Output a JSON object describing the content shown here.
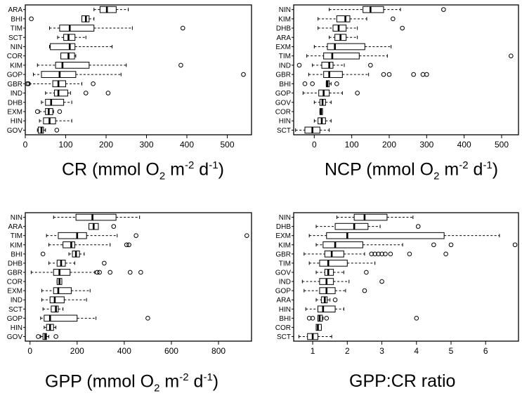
{
  "chart_data": [
    {
      "type": "boxplot",
      "panel": "top-left",
      "xlabel": {
        "main": "CR (mmol O",
        "sub": "2",
        "mid1": " m",
        "sup1": "-2",
        "mid2": " d",
        "sup2": "-1",
        "end": ")"
      },
      "xlim": [
        0,
        560
      ],
      "xticks": [
        0,
        100,
        200,
        300,
        400,
        500
      ],
      "categories": [
        "ARA",
        "BHI",
        "TIM",
        "SCT",
        "NIN",
        "COR",
        "KIM",
        "GOP",
        "GBR",
        "IND",
        "DHB",
        "EXM",
        "HIN",
        "GOV"
      ],
      "boxes": [
        {
          "cat": "ARA",
          "whisker_low": 170,
          "q1": 185,
          "median": 202,
          "q3": 225,
          "whisker_high": 255,
          "outliers": []
        },
        {
          "cat": "BHI",
          "whisker_low": 140,
          "q1": 140,
          "median": 150,
          "q3": 158,
          "whisker_high": 170,
          "outliers": [
            15
          ]
        },
        {
          "cat": "TIM",
          "whisker_low": 60,
          "q1": 85,
          "median": 110,
          "q3": 170,
          "whisker_high": 265,
          "outliers": [
            390
          ]
        },
        {
          "cat": "SCT",
          "whisker_low": 80,
          "q1": 95,
          "median": 107,
          "q3": 123,
          "whisker_high": 150,
          "outliers": []
        },
        {
          "cat": "NIN",
          "whisker_low": 60,
          "q1": 62,
          "median": 110,
          "q3": 123,
          "whisker_high": 215,
          "outliers": []
        },
        {
          "cat": "COR",
          "whisker_low": 88,
          "q1": 88,
          "median": 107,
          "q3": 122,
          "whisker_high": 125,
          "outliers": []
        },
        {
          "cat": "KIM",
          "whisker_low": 30,
          "q1": 75,
          "median": 92,
          "q3": 158,
          "whisker_high": 250,
          "outliers": [
            385
          ]
        },
        {
          "cat": "GOP",
          "whisker_low": 20,
          "q1": 40,
          "median": 85,
          "q3": 125,
          "whisker_high": 237,
          "outliers": [
            540
          ]
        },
        {
          "cat": "GBR",
          "whisker_low": 10,
          "q1": 68,
          "median": 82,
          "q3": 100,
          "whisker_high": 140,
          "outliers": [
            5,
            8,
            168
          ]
        },
        {
          "cat": "IND",
          "whisker_low": 50,
          "q1": 72,
          "median": 82,
          "q3": 105,
          "whisker_high": 112,
          "outliers": [
            150,
            205
          ]
        },
        {
          "cat": "DHB",
          "whisker_low": 40,
          "q1": 50,
          "median": 64,
          "q3": 95,
          "whisker_high": 115,
          "outliers": []
        },
        {
          "cat": "EXM",
          "whisker_low": 35,
          "q1": 50,
          "median": 58,
          "q3": 68,
          "whisker_high": 70,
          "outliers": [
            30,
            85
          ]
        },
        {
          "cat": "HIN",
          "whisker_low": 35,
          "q1": 45,
          "median": 60,
          "q3": 75,
          "whisker_high": 115,
          "outliers": []
        },
        {
          "cat": "GOV",
          "whisker_low": 30,
          "q1": 32,
          "median": 40,
          "q3": 45,
          "whisker_high": 50,
          "outliers": [
            78
          ]
        }
      ]
    },
    {
      "type": "boxplot",
      "panel": "top-right",
      "xlabel": {
        "main": "NCP (mmol O",
        "sub": "2",
        "mid1": " m",
        "sup1": "-2",
        "mid2": " d",
        "sup2": "-1",
        "end": ")"
      },
      "xlim": [
        -55,
        545
      ],
      "xticks": [
        0,
        100,
        200,
        300,
        400,
        500
      ],
      "categories": [
        "NIN",
        "KIM",
        "DHB",
        "ARA",
        "EXM",
        "TIM",
        "IND",
        "GBR",
        "BHI",
        "GOP",
        "GOV",
        "COR",
        "HIN",
        "SCT"
      ],
      "boxes": [
        {
          "cat": "NIN",
          "whisker_low": 40,
          "q1": 130,
          "median": 150,
          "q3": 185,
          "whisker_high": 230,
          "outliers": [
            345
          ]
        },
        {
          "cat": "KIM",
          "whisker_low": 10,
          "q1": 60,
          "median": 83,
          "q3": 95,
          "whisker_high": 140,
          "outliers": [
            210
          ]
        },
        {
          "cat": "DHB",
          "whisker_low": 10,
          "q1": 50,
          "median": 65,
          "q3": 85,
          "whisker_high": 115,
          "outliers": [
            235
          ]
        },
        {
          "cat": "ARA",
          "whisker_low": 40,
          "q1": 55,
          "median": 70,
          "q3": 85,
          "whisker_high": 115,
          "outliers": []
        },
        {
          "cat": "EXM",
          "whisker_low": 0,
          "q1": 35,
          "median": 55,
          "q3": 135,
          "whisker_high": 205,
          "outliers": []
        },
        {
          "cat": "TIM",
          "whisker_low": -20,
          "q1": 25,
          "median": 48,
          "q3": 120,
          "whisker_high": 195,
          "outliers": [
            525
          ]
        },
        {
          "cat": "IND",
          "whisker_low": -5,
          "q1": 20,
          "median": 40,
          "q3": 50,
          "whisker_high": 80,
          "outliers": [
            -40,
            150
          ]
        },
        {
          "cat": "GBR",
          "whisker_low": -15,
          "q1": 25,
          "median": 40,
          "q3": 75,
          "whisker_high": 145,
          "outliers": [
            185,
            200,
            265,
            290,
            300
          ]
        },
        {
          "cat": "BHI",
          "whisker_low": 32,
          "q1": 32,
          "median": 35,
          "q3": 40,
          "whisker_high": 45,
          "outliers": [
            -25,
            -5,
            60
          ]
        },
        {
          "cat": "GOP",
          "whisker_low": -30,
          "q1": 12,
          "median": 25,
          "q3": 40,
          "whisker_high": 75,
          "outliers": [
            115
          ]
        },
        {
          "cat": "GOV",
          "whisker_low": 0,
          "q1": 15,
          "median": 22,
          "q3": 30,
          "whisker_high": 45,
          "outliers": []
        },
        {
          "cat": "COR",
          "whisker_low": 15,
          "q1": 15,
          "median": 18,
          "q3": 22,
          "whisker_high": 22,
          "outliers": []
        },
        {
          "cat": "HIN",
          "whisker_low": 0,
          "q1": 10,
          "median": 20,
          "q3": 30,
          "whisker_high": 45,
          "outliers": []
        },
        {
          "cat": "SCT",
          "whisker_low": -50,
          "q1": -25,
          "median": -5,
          "q3": 15,
          "whisker_high": 40,
          "outliers": []
        }
      ]
    },
    {
      "type": "boxplot",
      "panel": "bottom-left",
      "xlabel": {
        "main": "GPP (mmol O",
        "sub": "2",
        "mid1": " m",
        "sup1": "-2",
        "mid2": " d",
        "sup2": "-1",
        "end": ")"
      },
      "xlim": [
        -20,
        940
      ],
      "xticks": [
        0,
        200,
        400,
        600,
        800
      ],
      "categories": [
        "NIN",
        "ARA",
        "TIM",
        "KIM",
        "BHI",
        "DHB",
        "GBR",
        "COR",
        "EXM",
        "IND",
        "SCT",
        "GOP",
        "HIN",
        "GOV"
      ],
      "boxes": [
        {
          "cat": "NIN",
          "whisker_low": 100,
          "q1": 195,
          "median": 265,
          "q3": 365,
          "whisker_high": 465,
          "outliers": []
        },
        {
          "cat": "ARA",
          "whisker_low": 250,
          "q1": 250,
          "median": 270,
          "q3": 290,
          "whisker_high": 290,
          "outliers": [
            355
          ]
        },
        {
          "cat": "TIM",
          "whisker_low": 70,
          "q1": 120,
          "median": 200,
          "q3": 240,
          "whisker_high": 370,
          "outliers": [
            450,
            920
          ]
        },
        {
          "cat": "KIM",
          "whisker_low": 80,
          "q1": 140,
          "median": 175,
          "q3": 190,
          "whisker_high": 340,
          "outliers": [
            410,
            420
          ]
        },
        {
          "cat": "BHI",
          "whisker_low": 165,
          "q1": 180,
          "median": 195,
          "q3": 210,
          "whisker_high": 230,
          "outliers": [
            55
          ]
        },
        {
          "cat": "DHB",
          "whisker_low": 80,
          "q1": 115,
          "median": 132,
          "q3": 150,
          "whisker_high": 190,
          "outliers": [
            315
          ]
        },
        {
          "cat": "GBR",
          "whisker_low": 5,
          "q1": 100,
          "median": 125,
          "q3": 170,
          "whisker_high": 275,
          "outliers": [
            285,
            295,
            340,
            425,
            470
          ]
        },
        {
          "cat": "COR",
          "whisker_low": 115,
          "q1": 115,
          "median": 125,
          "q3": 135,
          "whisker_high": 135,
          "outliers": []
        },
        {
          "cat": "EXM",
          "whisker_low": 50,
          "q1": 100,
          "median": 120,
          "q3": 175,
          "whisker_high": 255,
          "outliers": []
        },
        {
          "cat": "IND",
          "whisker_low": 50,
          "q1": 85,
          "median": 105,
          "q3": 145,
          "whisker_high": 240,
          "outliers": []
        },
        {
          "cat": "SCT",
          "whisker_low": 55,
          "q1": 90,
          "median": 110,
          "q3": 120,
          "whisker_high": 140,
          "outliers": []
        },
        {
          "cat": "GOP",
          "whisker_low": 45,
          "q1": 60,
          "median": 85,
          "q3": 200,
          "whisker_high": 280,
          "outliers": [
            500
          ]
        },
        {
          "cat": "HIN",
          "whisker_low": 60,
          "q1": 70,
          "median": 85,
          "q3": 100,
          "whisker_high": 110,
          "outliers": []
        },
        {
          "cat": "GOV",
          "whisker_low": 45,
          "q1": 55,
          "median": 65,
          "q3": 70,
          "whisker_high": 80,
          "outliers": [
            35,
            110
          ]
        }
      ]
    },
    {
      "type": "boxplot",
      "panel": "bottom-right",
      "xlabel": {
        "main": "GPP:CR ratio"
      },
      "xlim": [
        0.45,
        6.95
      ],
      "xticks": [
        1,
        2,
        3,
        4,
        5,
        6
      ],
      "categories": [
        "NIN",
        "DHB",
        "EXM",
        "KIM",
        "GBR",
        "TIM",
        "GOV",
        "IND",
        "GOP",
        "ARA",
        "HIN",
        "BHI",
        "COR",
        "SCT"
      ],
      "boxes": [
        {
          "cat": "NIN",
          "whisker_low": 1.7,
          "q1": 2.2,
          "median": 2.5,
          "q3": 3.15,
          "whisker_high": 3.9,
          "outliers": []
        },
        {
          "cat": "DHB",
          "whisker_low": 1.1,
          "q1": 1.65,
          "median": 2.2,
          "q3": 2.6,
          "whisker_high": 2.95,
          "outliers": [
            4.05
          ]
        },
        {
          "cat": "EXM",
          "whisker_low": 0.9,
          "q1": 1.4,
          "median": 2.0,
          "q3": 4.8,
          "whisker_high": 6.4,
          "outliers": []
        },
        {
          "cat": "KIM",
          "whisker_low": 1.1,
          "q1": 1.3,
          "median": 1.65,
          "q3": 2.45,
          "whisker_high": 3.6,
          "outliers": [
            4.5,
            5.0,
            6.85
          ]
        },
        {
          "cat": "GBR",
          "whisker_low": 0.75,
          "q1": 1.35,
          "median": 1.55,
          "q3": 1.9,
          "whisker_high": 2.5,
          "outliers": [
            2.7,
            2.8,
            2.9,
            3.0,
            3.1,
            3.25,
            3.8,
            4.85
          ]
        },
        {
          "cat": "TIM",
          "whisker_low": 0.9,
          "q1": 1.2,
          "median": 1.45,
          "q3": 2.0,
          "whisker_high": 2.8,
          "outliers": []
        },
        {
          "cat": "GOV",
          "whisker_low": 1.1,
          "q1": 1.35,
          "median": 1.45,
          "q3": 1.6,
          "whisker_high": 1.9,
          "outliers": [
            2.55
          ]
        },
        {
          "cat": "IND",
          "whisker_low": 0.7,
          "q1": 1.2,
          "median": 1.4,
          "q3": 1.6,
          "whisker_high": 2.05,
          "outliers": [
            3.0
          ]
        },
        {
          "cat": "GOP",
          "whisker_low": 0.75,
          "q1": 1.2,
          "median": 1.4,
          "q3": 1.65,
          "whisker_high": 1.95,
          "outliers": [
            2.5
          ]
        },
        {
          "cat": "ARA",
          "whisker_low": 1.1,
          "q1": 1.25,
          "median": 1.35,
          "q3": 1.42,
          "whisker_high": 1.5,
          "outliers": [
            1.65
          ]
        },
        {
          "cat": "HIN",
          "whisker_low": 0.8,
          "q1": 1.15,
          "median": 1.3,
          "q3": 1.65,
          "whisker_high": 1.9,
          "outliers": []
        },
        {
          "cat": "BHI",
          "whisker_low": 1.15,
          "q1": 1.15,
          "median": 1.2,
          "q3": 1.28,
          "whisker_high": 1.3,
          "outliers": [
            0.9,
            1.0,
            1.4,
            4.0
          ]
        },
        {
          "cat": "COR",
          "whisker_low": 1.1,
          "q1": 1.1,
          "median": 1.15,
          "q3": 1.25,
          "whisker_high": 1.25,
          "outliers": []
        },
        {
          "cat": "SCT",
          "whisker_low": 0.6,
          "q1": 0.85,
          "median": 1.0,
          "q3": 1.15,
          "whisker_high": 1.55,
          "outliers": []
        }
      ]
    }
  ]
}
